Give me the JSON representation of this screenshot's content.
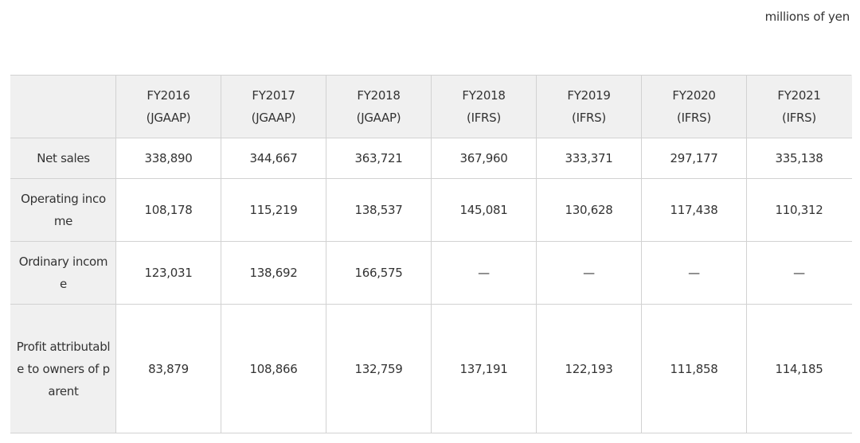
{
  "unit_note": "millions of yen",
  "table": {
    "columns": [
      {
        "year": "FY2016",
        "standard": "(JGAAP)"
      },
      {
        "year": "FY2017",
        "standard": "(JGAAP)"
      },
      {
        "year": "FY2018",
        "standard": "(JGAAP)"
      },
      {
        "year": "FY2018",
        "standard": "(IFRS)"
      },
      {
        "year": "FY2019",
        "standard": "(IFRS)"
      },
      {
        "year": "FY2020",
        "standard": "(IFRS)"
      },
      {
        "year": "FY2021",
        "standard": "(IFRS)"
      }
    ],
    "rows": [
      {
        "label": "Net sales",
        "values": [
          "338,890",
          "344,667",
          "363,721",
          "367,960",
          "333,371",
          "297,177",
          "335,138"
        ]
      },
      {
        "label": "Operating income",
        "values": [
          "108,178",
          "115,219",
          "138,537",
          "145,081",
          "130,628",
          "117,438",
          "110,312"
        ]
      },
      {
        "label": "Ordinary income",
        "values": [
          "123,031",
          "138,692",
          "166,575",
          "—",
          "—",
          "—",
          "—"
        ]
      },
      {
        "label": "Profit attributable to owners of parent",
        "values": [
          "83,879",
          "108,866",
          "132,759",
          "137,191",
          "122,193",
          "111,858",
          "114,185"
        ]
      }
    ]
  }
}
